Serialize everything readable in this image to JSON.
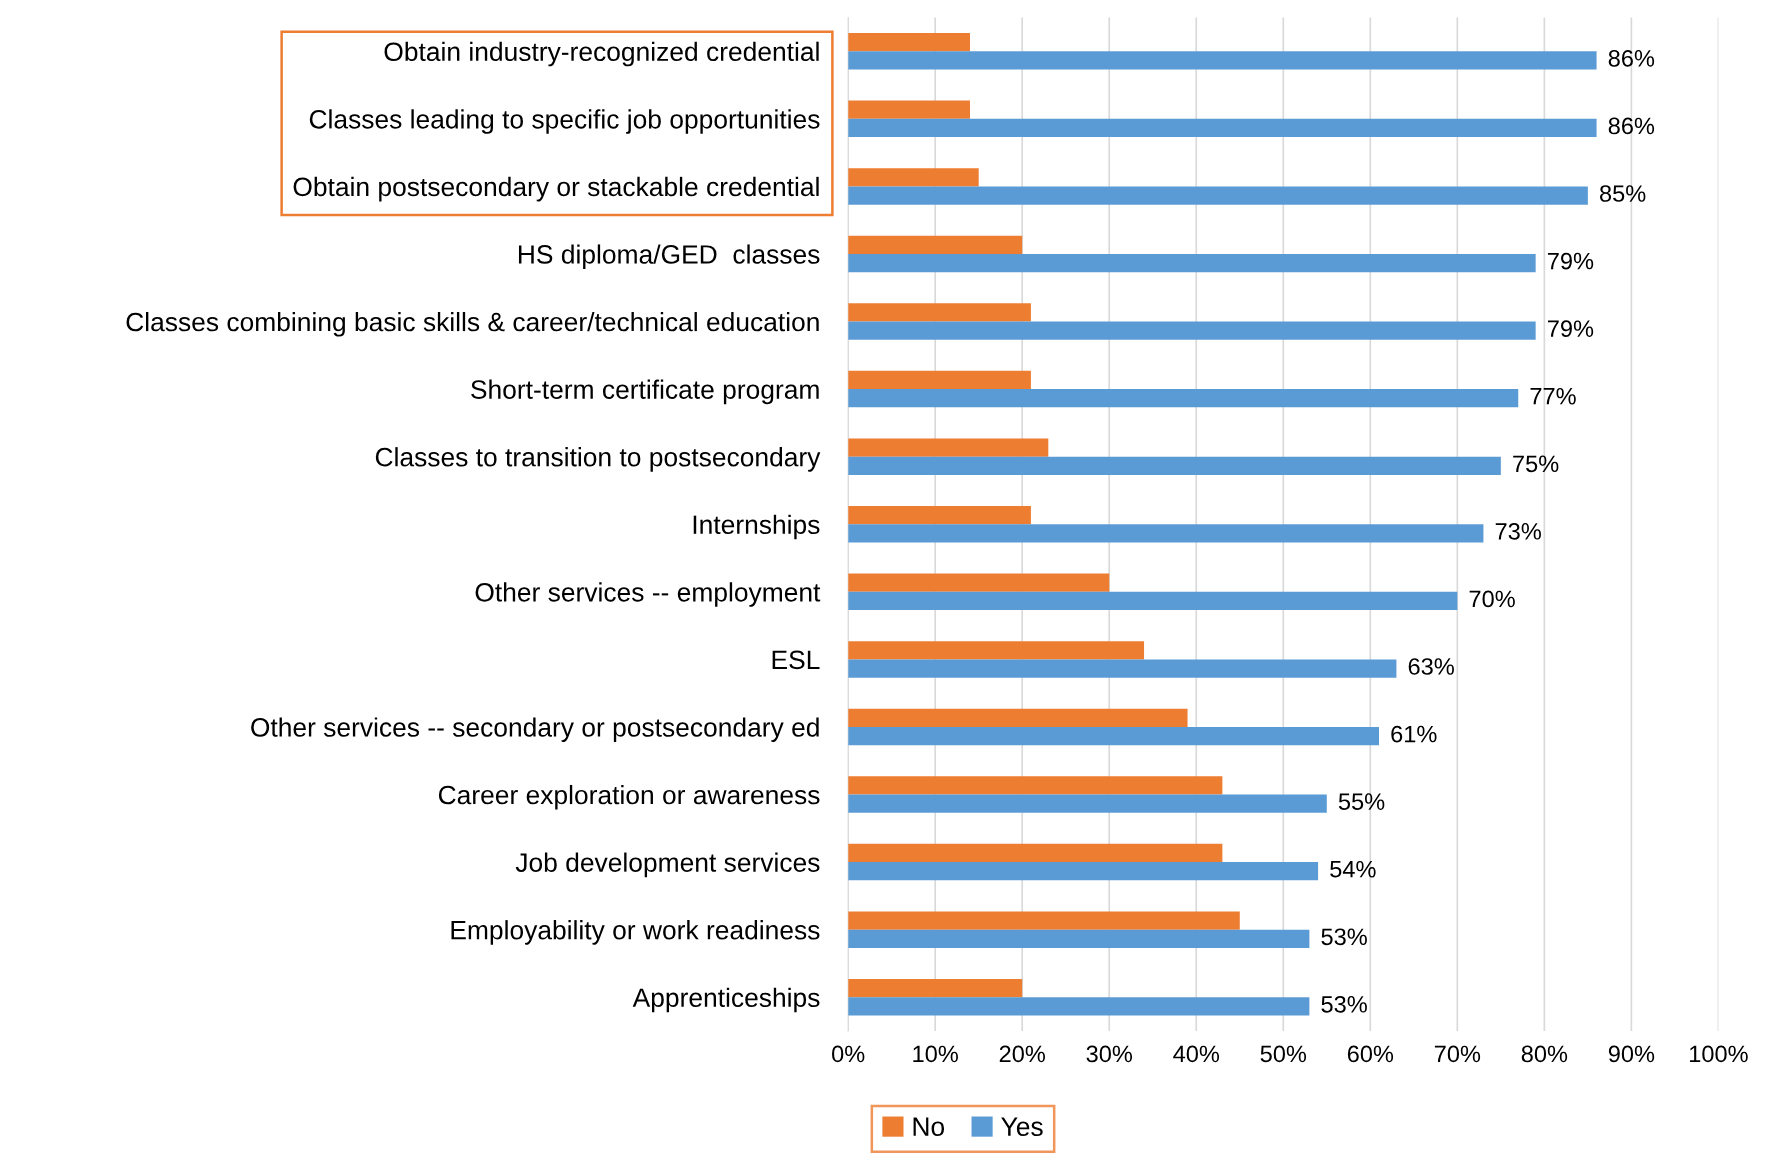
{
  "chart_data": {
    "type": "bar",
    "orientation": "horizontal",
    "categories": [
      "Obtain industry-recognized credential",
      "Classes leading to specific job opportunities",
      "Obtain postsecondary or stackable credential",
      "HS diploma/GED  classes",
      "Classes combining basic skills & career/technical education",
      "Short-term certificate program",
      "Classes to transition to postsecondary",
      "Internships",
      "Other services -- employment",
      "ESL",
      "Other services -- secondary or postsecondary ed",
      "Career exploration or awareness",
      "Job development services",
      "Employability or work readiness",
      "Apprenticeships"
    ],
    "series": [
      {
        "name": "No",
        "color": "#ed7d31",
        "values": [
          14,
          14,
          15,
          20,
          21,
          21,
          23,
          21,
          30,
          34,
          39,
          43,
          43,
          45,
          20
        ]
      },
      {
        "name": "Yes",
        "color": "#5b9bd5",
        "values": [
          86,
          86,
          85,
          79,
          79,
          77,
          75,
          73,
          70,
          63,
          61,
          55,
          54,
          53,
          53
        ],
        "value_labels": [
          "86%",
          "86%",
          "85%",
          "79%",
          "79%",
          "77%",
          "75%",
          "73%",
          "70%",
          "63%",
          "61%",
          "55%",
          "54%",
          "53%",
          "53%"
        ]
      }
    ],
    "xlim": [
      0,
      100
    ],
    "xticks": [
      {
        "value": 0,
        "label": "0%"
      },
      {
        "value": 10,
        "label": "10%"
      },
      {
        "value": 20,
        "label": "20%"
      },
      {
        "value": 30,
        "label": "30%"
      },
      {
        "value": 40,
        "label": "40%"
      },
      {
        "value": 50,
        "label": "50%"
      },
      {
        "value": 60,
        "label": "60%"
      },
      {
        "value": 70,
        "label": "70%"
      },
      {
        "value": 80,
        "label": "80%"
      },
      {
        "value": 90,
        "label": "90%"
      },
      {
        "value": 100,
        "label": "100%"
      }
    ],
    "grid": "x",
    "legend": "bottom"
  }
}
